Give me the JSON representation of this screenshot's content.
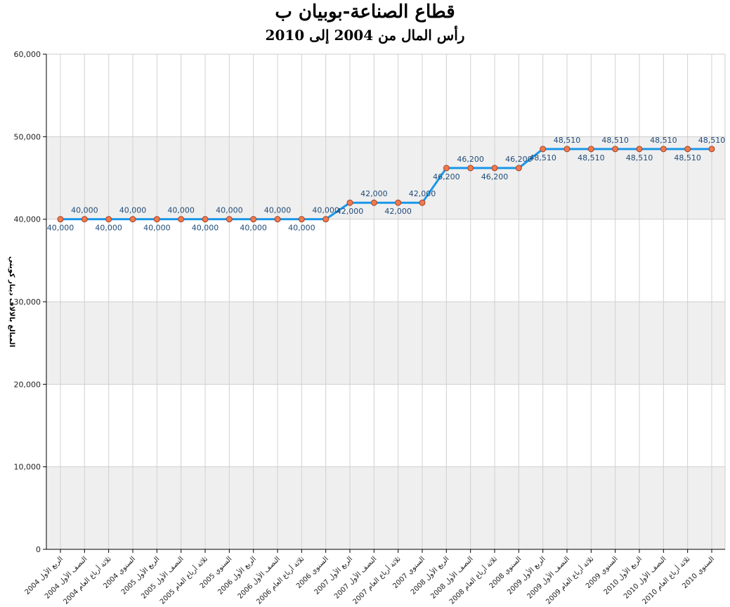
{
  "chart_data": {
    "type": "line",
    "title": "قطاع الصناعة-بوبيان ب",
    "subtitle": "رأس المال من 2004 إلى 2010",
    "xlabel": "",
    "ylabel": "المبالغ بالالاف دينار كويتي",
    "ylim": [
      0,
      60000
    ],
    "yticks": [
      0,
      10000,
      20000,
      30000,
      40000,
      50000,
      60000
    ],
    "ytick_labels": [
      "0",
      "10,000",
      "20,000",
      "30,000",
      "40,000",
      "50,000",
      "60,000"
    ],
    "grid": true,
    "banded_background": true,
    "colors": {
      "line": "#1a97e8",
      "marker_fill": "#f07a4e",
      "marker_stroke": "#a0452a",
      "label": "#1f4b78",
      "band": "#efefef"
    },
    "categories": [
      "الربع الأول 2004",
      "النصف الأول 2004",
      "ثلاثة أرباع العام 2004",
      "السنوي 2004",
      "الربع الأول 2005",
      "النصف الأول 2005",
      "ثلاثة أرباع العام 2005",
      "السنوي 2005",
      "الربع الأول 2006",
      "النصف الأول 2006",
      "ثلاثة أرباع العام 2006",
      "السنوي 2006",
      "الربع الأول 2007",
      "النصف الأول 2007",
      "ثلاثة أرباع العام 2007",
      "السنوي 2007",
      "الربع الأول 2008",
      "النصف الأول 2008",
      "ثلاثة أرباع العام 2008",
      "السنوي 2008",
      "الربع الأول 2009",
      "النصف الأول 2009",
      "ثلاثة أرباع العام 2009",
      "السنوي 2009",
      "الربع الأول 2010",
      "النصف الأول 2010",
      "ثلاثة أرباع العام 2010",
      "السنوي 2010"
    ],
    "series": [
      {
        "values": [
          40000,
          40000,
          40000,
          40000,
          40000,
          40000,
          40000,
          40000,
          40000,
          40000,
          40000,
          40000,
          42000,
          42000,
          42000,
          42000,
          46200,
          46200,
          46200,
          46200,
          48510,
          48510,
          48510,
          48510,
          48510,
          48510,
          48510,
          48510
        ],
        "data_labels": [
          "40,000",
          "40,000",
          "40,000",
          "40,000",
          "40,000",
          "40,000",
          "40,000",
          "40,000",
          "40,000",
          "40,000",
          "40,000",
          "40,000",
          "42,000",
          "42,000",
          "42,000",
          "42,000",
          "46,200",
          "46,200",
          "46,200",
          "46,200",
          "48,510",
          "48,510",
          "48,510",
          "48,510",
          "48,510",
          "48,510",
          "48,510",
          "48,510"
        ]
      }
    ]
  }
}
